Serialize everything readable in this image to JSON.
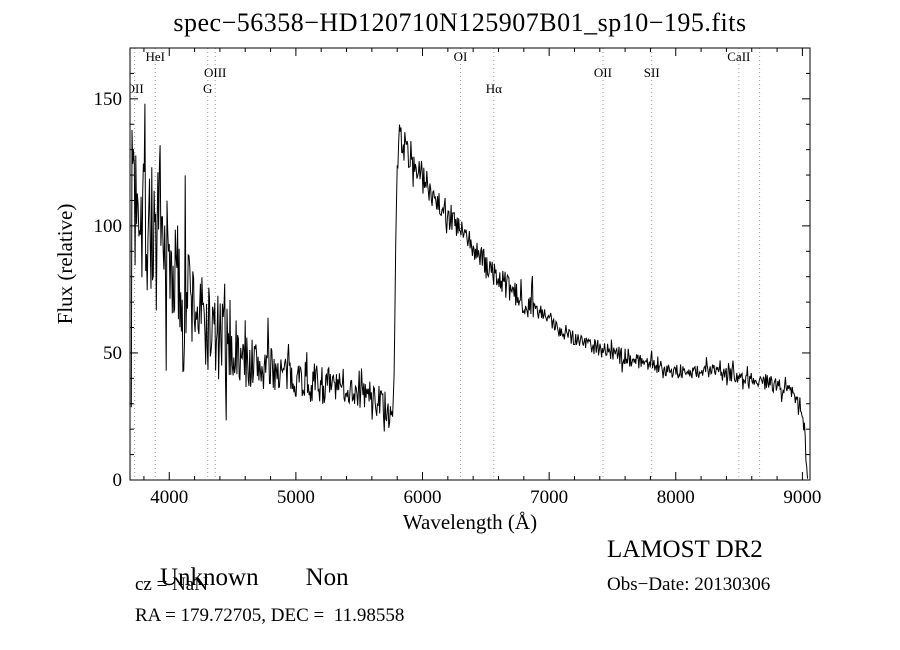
{
  "chart_data": {
    "type": "line",
    "title": "spec−56358−HD120710N125907B01_sp10−195.fits",
    "xlabel": "Wavelength (Å)",
    "ylabel": "Flux (relative)",
    "xlim": [
      3690,
      9060
    ],
    "ylim": [
      0,
      170
    ],
    "xticks": [
      4000,
      5000,
      6000,
      7000,
      8000,
      9000
    ],
    "yticks": [
      0,
      50,
      100,
      150
    ],
    "x_minor_step": 200,
    "y_minor_step": 10,
    "line_color": "#000000",
    "marker_line_color": "#999999",
    "grid": false,
    "seed": 7,
    "sample_step": 6,
    "spectral_lines": [
      {
        "label": "OII",
        "wavelength": 3727,
        "row": 2
      },
      {
        "label": "HeI",
        "wavelength": 3889,
        "row": 0
      },
      {
        "label": "OIII",
        "wavelength": 4363,
        "row": 1
      },
      {
        "label": "G",
        "wavelength": 4304,
        "row": 2
      },
      {
        "label": "OI",
        "wavelength": 6300,
        "row": 0
      },
      {
        "label": "Hα",
        "wavelength": 6563,
        "row": 2
      },
      {
        "label": "OII",
        "wavelength": 7425,
        "row": 1
      },
      {
        "label": "SII",
        "wavelength": 7810,
        "row": 1
      },
      {
        "label": "CaII",
        "wavelength": 8498,
        "row": 0
      },
      {
        "label": "",
        "wavelength": 8662,
        "row": 0
      }
    ],
    "envelope": [
      [
        3700,
        88
      ],
      [
        3710,
        120
      ],
      [
        3720,
        135
      ],
      [
        3730,
        100
      ],
      [
        3740,
        118
      ],
      [
        3750,
        128
      ],
      [
        3760,
        112
      ],
      [
        3770,
        122
      ],
      [
        3780,
        105
      ],
      [
        3800,
        115
      ],
      [
        3820,
        98
      ],
      [
        3840,
        108
      ],
      [
        3860,
        96
      ],
      [
        3880,
        102
      ],
      [
        3900,
        90
      ],
      [
        3925,
        94
      ],
      [
        3950,
        86
      ],
      [
        3975,
        90
      ],
      [
        4000,
        82
      ],
      [
        4030,
        84
      ],
      [
        4060,
        78
      ],
      [
        4100,
        74
      ],
      [
        4150,
        74
      ],
      [
        4200,
        68
      ],
      [
        4250,
        64
      ],
      [
        4300,
        60
      ],
      [
        4350,
        58
      ],
      [
        4400,
        54
      ],
      [
        4450,
        52
      ],
      [
        4500,
        50
      ],
      [
        4550,
        48
      ],
      [
        4600,
        47
      ],
      [
        4650,
        46
      ],
      [
        4700,
        45
      ],
      [
        4750,
        44
      ],
      [
        4800,
        44
      ],
      [
        4850,
        43
      ],
      [
        4900,
        42
      ],
      [
        4950,
        41
      ],
      [
        5000,
        41
      ],
      [
        5050,
        40
      ],
      [
        5100,
        39
      ],
      [
        5150,
        38
      ],
      [
        5200,
        38
      ],
      [
        5250,
        37
      ],
      [
        5300,
        37
      ],
      [
        5350,
        36
      ],
      [
        5400,
        36
      ],
      [
        5450,
        35
      ],
      [
        5500,
        34
      ],
      [
        5550,
        34
      ],
      [
        5600,
        33
      ],
      [
        5650,
        32
      ],
      [
        5700,
        29
      ],
      [
        5730,
        24
      ],
      [
        5760,
        20
      ],
      [
        5775,
        40
      ],
      [
        5790,
        100
      ],
      [
        5805,
        130
      ],
      [
        5820,
        138
      ],
      [
        5840,
        133
      ],
      [
        5870,
        130
      ],
      [
        5900,
        127
      ],
      [
        5950,
        123
      ],
      [
        6000,
        119
      ],
      [
        6050,
        115
      ],
      [
        6100,
        112
      ],
      [
        6150,
        108
      ],
      [
        6200,
        105
      ],
      [
        6250,
        101
      ],
      [
        6300,
        98
      ],
      [
        6350,
        95
      ],
      [
        6400,
        91
      ],
      [
        6450,
        88
      ],
      [
        6500,
        85
      ],
      [
        6550,
        82
      ],
      [
        6600,
        79
      ],
      [
        6650,
        77
      ],
      [
        6700,
        74
      ],
      [
        6750,
        72
      ],
      [
        6800,
        70
      ],
      [
        6856,
        68
      ],
      [
        6864,
        93
      ],
      [
        6872,
        67
      ],
      [
        6900,
        66
      ],
      [
        6950,
        65
      ],
      [
        7000,
        63
      ],
      [
        7050,
        61
      ],
      [
        7100,
        59
      ],
      [
        7150,
        58
      ],
      [
        7200,
        56
      ],
      [
        7250,
        55
      ],
      [
        7300,
        54
      ],
      [
        7350,
        53
      ],
      [
        7400,
        52
      ],
      [
        7450,
        51
      ],
      [
        7500,
        50
      ],
      [
        7550,
        49
      ],
      [
        7600,
        48
      ],
      [
        7700,
        47
      ],
      [
        7800,
        46
      ],
      [
        7900,
        44
      ],
      [
        8000,
        43
      ],
      [
        8100,
        42
      ],
      [
        8200,
        43
      ],
      [
        8300,
        43
      ],
      [
        8400,
        42
      ],
      [
        8500,
        41
      ],
      [
        8600,
        40
      ],
      [
        8700,
        39
      ],
      [
        8800,
        37
      ],
      [
        8850,
        36
      ],
      [
        8900,
        35
      ],
      [
        8950,
        33
      ],
      [
        8980,
        30
      ],
      [
        9000,
        26
      ],
      [
        9015,
        18
      ],
      [
        9030,
        8
      ],
      [
        9042,
        4
      ]
    ],
    "noise_profile": [
      [
        3700,
        3960,
        32
      ],
      [
        3960,
        4160,
        25
      ],
      [
        4160,
        4460,
        19
      ],
      [
        4460,
        4800,
        11
      ],
      [
        4800,
        5300,
        8
      ],
      [
        5300,
        5770,
        6
      ],
      [
        5770,
        5830,
        4
      ],
      [
        5830,
        6250,
        6
      ],
      [
        6250,
        6900,
        5
      ],
      [
        6900,
        7600,
        3.5
      ],
      [
        7600,
        8400,
        3
      ],
      [
        8400,
        9045,
        3
      ]
    ]
  },
  "annotations": {
    "class_label": "Unknown",
    "subclass_label": "Non",
    "survey": "LAMOST DR2",
    "cz": "cz = NaN",
    "obs_date": "Obs−Date: 20130306",
    "ra_dec": "RA = 179.72705, DEC =  11.98558"
  }
}
